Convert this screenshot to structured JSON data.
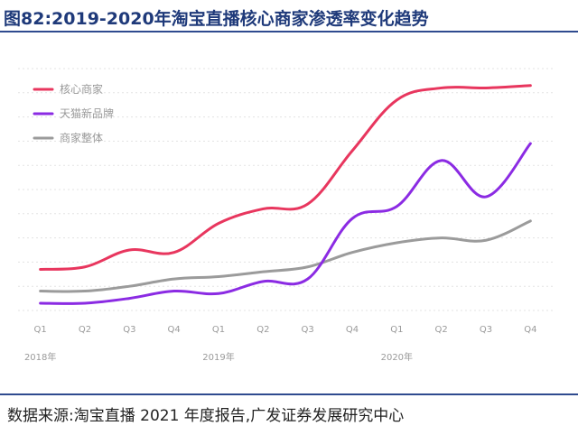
{
  "title": "图82:2019-2020年淘宝直播核心商家渗透率变化趋势",
  "source": "数据来源:淘宝直播 2021 年度报告,广发证券发展研究中心",
  "chart_data": {
    "type": "line",
    "title": "2019-2020年淘宝直播核心商家渗透率变化趋势",
    "xlabel": "",
    "ylabel": "",
    "categories": [
      "Q1",
      "Q2",
      "Q3",
      "Q4",
      "Q1",
      "Q2",
      "Q3",
      "Q4",
      "Q1",
      "Q2",
      "Q3",
      "Q4"
    ],
    "year_labels": [
      {
        "label": "2018年",
        "index": 0
      },
      {
        "label": "2019年",
        "index": 4
      },
      {
        "label": "2020年",
        "index": 8
      }
    ],
    "ylim": [
      0,
      100
    ],
    "grid": true,
    "legend_position": "top-left",
    "series": [
      {
        "name": "核心商家",
        "color": "#e8365e",
        "values": [
          17,
          18,
          25,
          24,
          36,
          42,
          44,
          66,
          87,
          92,
          92,
          93
        ]
      },
      {
        "name": "天猫新品牌",
        "color": "#8b2be3",
        "values": [
          3,
          3,
          5,
          8,
          7,
          12,
          13,
          38,
          43,
          62,
          47,
          69
        ]
      },
      {
        "name": "商家整体",
        "color": "#9b9b9b",
        "values": [
          8,
          8,
          10,
          13,
          14,
          16,
          18,
          24,
          28,
          30,
          29,
          37
        ]
      }
    ]
  }
}
